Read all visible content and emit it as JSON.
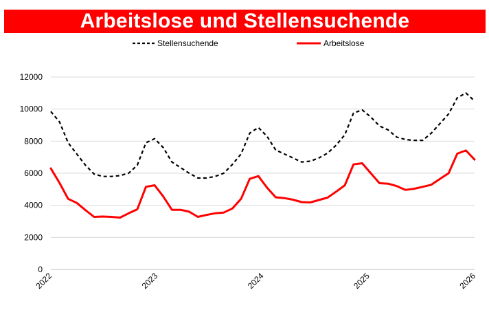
{
  "chart_data": {
    "type": "line",
    "title": "Arbeitslose und Stellensuchende",
    "xlabel": "",
    "ylabel": "",
    "ylim": [
      0,
      12000
    ],
    "yticks": [
      "0",
      "2000",
      "4000",
      "6000",
      "8000",
      "10000",
      "12000"
    ],
    "xticks": [
      "2022",
      "2023",
      "2024",
      "2025",
      "2026"
    ],
    "grid": "horizontal",
    "legend_position": "top",
    "series": [
      {
        "name": "Stellensuchende",
        "color": "#000000",
        "style": "dashed",
        "values": [
          9850,
          9200,
          7900,
          7200,
          6500,
          5950,
          5800,
          5800,
          5850,
          6000,
          6500,
          7900,
          8150,
          7600,
          6700,
          6350,
          6000,
          5700,
          5700,
          5800,
          6000,
          6550,
          7200,
          8500,
          8850,
          8300,
          7450,
          7200,
          6950,
          6700,
          6750,
          6950,
          7250,
          7750,
          8400,
          9750,
          9950,
          9500,
          8950,
          8700,
          8250,
          8100,
          8050,
          8050,
          8500,
          9100,
          9700,
          10700,
          11000,
          10500
        ]
      },
      {
        "name": "Arbeitslose",
        "color": "#ff0000",
        "style": "solid",
        "values": [
          6300,
          5400,
          4400,
          4150,
          3700,
          3280,
          3300,
          3280,
          3230,
          3500,
          3750,
          5150,
          5250,
          4550,
          3720,
          3720,
          3600,
          3280,
          3400,
          3500,
          3550,
          3800,
          4400,
          5650,
          5820,
          5100,
          4500,
          4450,
          4350,
          4200,
          4180,
          4330,
          4480,
          4850,
          5250,
          6550,
          6620,
          6000,
          5380,
          5350,
          5200,
          4960,
          5030,
          5150,
          5280,
          5650,
          6000,
          7220,
          7420,
          6850
        ]
      }
    ]
  }
}
